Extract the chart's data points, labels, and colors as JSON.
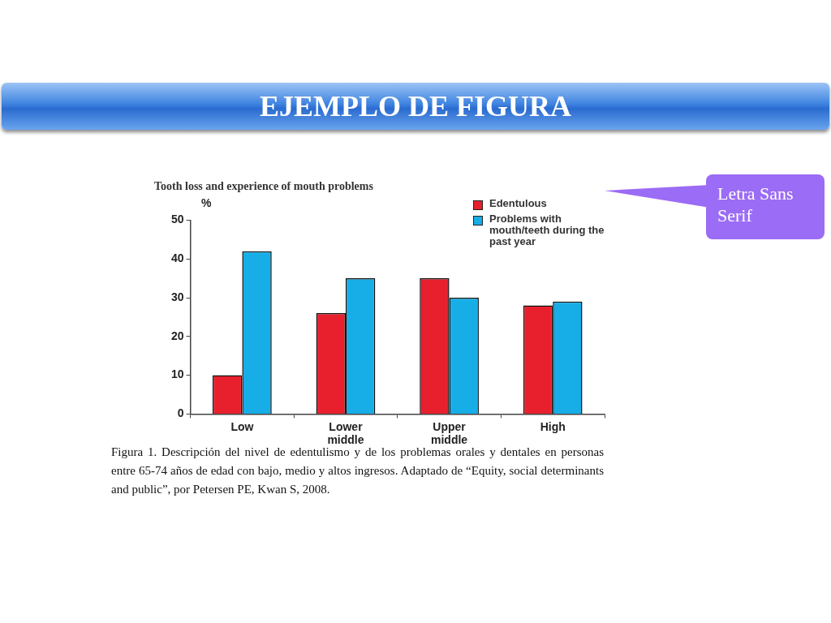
{
  "chart_data": {
    "type": "bar",
    "title": "EJEMPLO DE FIGURA",
    "subtitle": "Tooth loss and experience of mouth problems",
    "ylabel": "%",
    "categories": [
      "Low",
      "Lower middle",
      "Upper middle",
      "High"
    ],
    "series": [
      {
        "name": "Edentulous",
        "color": "#e8202e",
        "values": [
          10,
          26,
          35,
          28
        ]
      },
      {
        "name": "Problems with mouth/teeth during the past year",
        "color": "#17aee8",
        "values": [
          42,
          35,
          30,
          29
        ]
      }
    ],
    "ylim": [
      0,
      50
    ],
    "yticks": [
      0,
      10,
      20,
      30,
      40,
      50
    ],
    "grid": false,
    "legend": "top right",
    "annotations": [
      "Letra Sans Serif",
      "Figura 1. Descripción del nivel de edentulismo y de los problemas orales y dentales en personas entre 65-74 años de edad con bajo, medio y altos ingresos. Adaptado de “Equity, social determinants and public”, por Petersen PE, Kwan S, 2008."
    ]
  }
}
